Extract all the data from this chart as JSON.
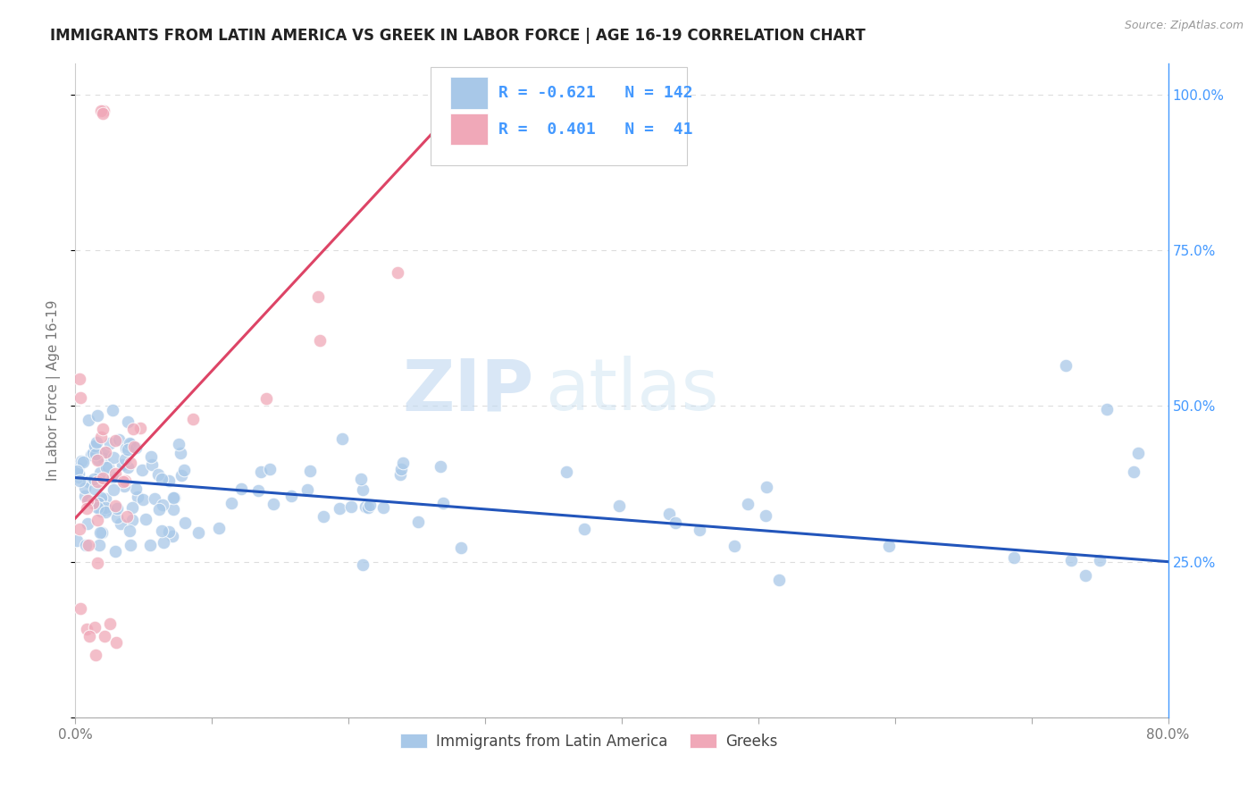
{
  "title": "IMMIGRANTS FROM LATIN AMERICA VS GREEK IN LABOR FORCE | AGE 16-19 CORRELATION CHART",
  "source": "Source: ZipAtlas.com",
  "ylabel": "In Labor Force | Age 16-19",
  "xlim": [
    0.0,
    0.8
  ],
  "ylim": [
    0.0,
    1.05
  ],
  "blue_R": "-0.621",
  "blue_N": "142",
  "pink_R": "0.401",
  "pink_N": "41",
  "blue_color": "#a8c8e8",
  "pink_color": "#f0a8b8",
  "blue_line_color": "#2255bb",
  "pink_line_color": "#dd4466",
  "watermark_zip": "ZIP",
  "watermark_atlas": "atlas",
  "legend1": "Immigrants from Latin America",
  "legend2": "Greeks",
  "blue_line_x0": 0.0,
  "blue_line_y0": 0.385,
  "blue_line_x1": 0.8,
  "blue_line_y1": 0.25,
  "pink_line_x0": 0.0,
  "pink_line_y0": 0.32,
  "pink_line_x1": 0.3,
  "pink_line_y1": 1.03,
  "right_axis_color": "#4499ff",
  "grid_color": "#dddddd",
  "title_color": "#222222",
  "source_color": "#999999",
  "tick_color": "#777777"
}
